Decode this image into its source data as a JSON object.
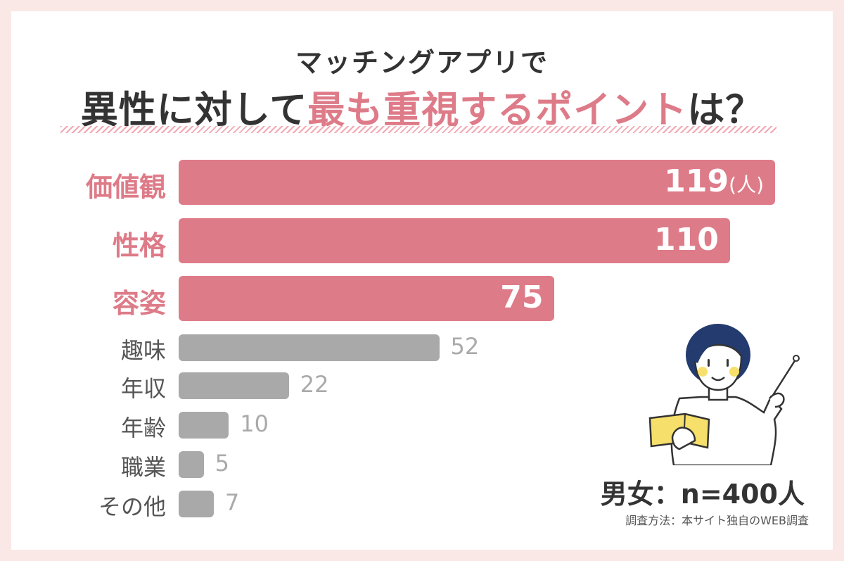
{
  "header": {
    "subtitle": "マッチングアプリで",
    "title_prefix": "異性に対して",
    "title_highlight": "最も重視するポイント",
    "title_suffix": "は？"
  },
  "chart_data": {
    "type": "bar",
    "orientation": "horizontal",
    "categories": [
      "価値観",
      "性格",
      "容姿",
      "趣味",
      "年収",
      "年齢",
      "職業",
      "その他"
    ],
    "values": [
      119,
      110,
      75,
      52,
      22,
      10,
      5,
      7
    ],
    "highlighted": [
      true,
      true,
      true,
      false,
      false,
      false,
      false,
      false
    ],
    "unit": "(人)",
    "colors": {
      "highlight": "#de7b88",
      "normal": "#a9a9a9"
    }
  },
  "footer": {
    "sample": "男女：n=400人",
    "method": "調査方法：本サイト独自のWEB調査"
  },
  "colors": {
    "background": "#f9e8e5",
    "card": "#ffffff",
    "accent": "#de7b88"
  },
  "illustration": {
    "icon": "teacher-with-book-and-pointer-icon"
  }
}
